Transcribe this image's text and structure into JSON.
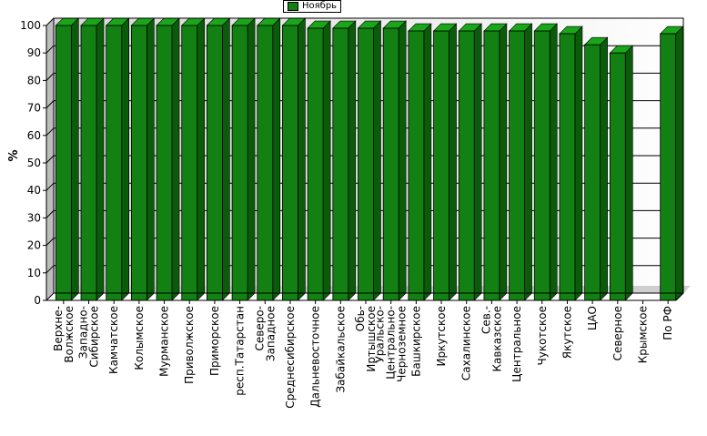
{
  "chart_data": {
    "type": "bar",
    "title": "",
    "xlabel": "",
    "ylabel": "%",
    "ylim": [
      0,
      100
    ],
    "yticks": [
      0,
      10,
      20,
      30,
      40,
      50,
      60,
      70,
      80,
      90,
      100
    ],
    "grid": true,
    "legend_position": "top-center",
    "categories": [
      "Верхне-Волжское",
      "Западно-Сибирское",
      "Камчатское",
      "Колымское",
      "Мурманское",
      "Приволжское",
      "Приморское",
      "респ.Татарстан",
      "Северо-Западное",
      "Среднесибирское",
      "Дальневосточное",
      "Забайкальское",
      "Обь-Иртышское",
      "Уральско-Центрально-Черноземное",
      "Башкирское",
      "Иркутское",
      "Сахалинское",
      "Сев.-Кавказское",
      "Центральное",
      "Чукотское",
      "Якутское",
      "ЦАО",
      "Северное",
      "Крымское",
      "По РФ"
    ],
    "category_lines": [
      [
        "Верхне-",
        "Волжское"
      ],
      [
        "Западно-",
        "Сибирское"
      ],
      [
        "Камчатское"
      ],
      [
        "Колымское"
      ],
      [
        "Мурманское"
      ],
      [
        "Приволжское"
      ],
      [
        "Приморское"
      ],
      [
        "респ.Татарстан"
      ],
      [
        "Северо-",
        "Западное"
      ],
      [
        "Среднесибирское"
      ],
      [
        "Дальневосточное"
      ],
      [
        "Забайкальское"
      ],
      [
        "Обь-",
        "Иртышское"
      ],
      [
        "Уральско-",
        "Центрально-",
        "Черноземное"
      ],
      [
        "Башкирское"
      ],
      [
        "Иркутское"
      ],
      [
        "Сахалинское"
      ],
      [
        "Сев.-",
        "Кавказское"
      ],
      [
        "Центральное"
      ],
      [
        "Чукотское"
      ],
      [
        "Якутское"
      ],
      [
        "ЦАО"
      ],
      [
        "Северное"
      ],
      [
        "Крымское"
      ],
      [
        "По РФ"
      ]
    ],
    "series": [
      {
        "name": "Ноябрь",
        "color": "#128012",
        "values": [
          100,
          100,
          100,
          100,
          100,
          100,
          100,
          100,
          100,
          100,
          99,
          99,
          99,
          99,
          98,
          98,
          98,
          98,
          98,
          98,
          97,
          93,
          90,
          null,
          97
        ]
      }
    ]
  }
}
